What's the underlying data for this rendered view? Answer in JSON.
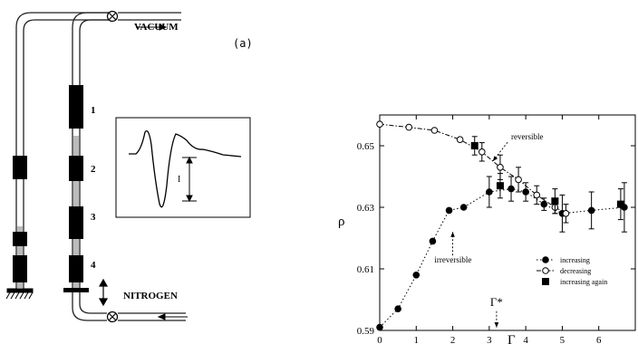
{
  "apparatus": {
    "vacuum_label": "VACUUM",
    "nitrogen_label": "NITROGEN",
    "panel_label": "(a)",
    "coil_labels": [
      "1",
      "2",
      "3",
      "4"
    ],
    "inset_signal_label": "I"
  },
  "chart_data": {
    "type": "scatter",
    "xlabel": "Γ",
    "ylabel": "ρ",
    "xlim": [
      0,
      7
    ],
    "ylim": [
      0.59,
      0.66
    ],
    "x_ticks": [
      0,
      1,
      2,
      3,
      4,
      5,
      6
    ],
    "y_ticks": [
      0.59,
      0.61,
      0.63,
      0.65
    ],
    "y_tick_labels": [
      "0.59",
      "0.61",
      "0.63",
      "0.65"
    ],
    "series": [
      {
        "name": "increasing",
        "marker": "filled-circle",
        "line": "dotted",
        "points": [
          {
            "x": 0.0,
            "y": 0.591,
            "err": 0.0
          },
          {
            "x": 0.5,
            "y": 0.597,
            "err": 0.0
          },
          {
            "x": 1.0,
            "y": 0.608,
            "err": 0.0
          },
          {
            "x": 1.45,
            "y": 0.619,
            "err": 0.0
          },
          {
            "x": 1.9,
            "y": 0.629,
            "err": 0.0
          },
          {
            "x": 2.3,
            "y": 0.63,
            "err": 0.0
          },
          {
            "x": 3.0,
            "y": 0.635,
            "err": 0.005
          },
          {
            "x": 3.6,
            "y": 0.636,
            "err": 0.004
          },
          {
            "x": 4.0,
            "y": 0.635,
            "err": 0.003
          },
          {
            "x": 4.5,
            "y": 0.631,
            "err": 0.002
          },
          {
            "x": 5.0,
            "y": 0.628,
            "err": 0.006
          },
          {
            "x": 5.8,
            "y": 0.629,
            "err": 0.006
          },
          {
            "x": 6.7,
            "y": 0.63,
            "err": 0.008
          }
        ]
      },
      {
        "name": "decreasing",
        "marker": "open-circle",
        "line": "dash-dot",
        "points": [
          {
            "x": 0.0,
            "y": 0.657,
            "err": 0.0
          },
          {
            "x": 0.8,
            "y": 0.656,
            "err": 0.0
          },
          {
            "x": 1.5,
            "y": 0.655,
            "err": 0.0
          },
          {
            "x": 2.2,
            "y": 0.652,
            "err": 0.0
          },
          {
            "x": 2.8,
            "y": 0.648,
            "err": 0.003
          },
          {
            "x": 3.3,
            "y": 0.643,
            "err": 0.004
          },
          {
            "x": 3.8,
            "y": 0.639,
            "err": 0.004
          },
          {
            "x": 4.3,
            "y": 0.634,
            "err": 0.003
          },
          {
            "x": 4.8,
            "y": 0.63,
            "err": 0.002
          },
          {
            "x": 5.1,
            "y": 0.628,
            "err": 0.003
          }
        ]
      },
      {
        "name": "increasing again",
        "marker": "filled-square",
        "line": "none",
        "points": [
          {
            "x": 2.6,
            "y": 0.65,
            "err": 0.003
          },
          {
            "x": 3.3,
            "y": 0.637,
            "err": 0.004
          },
          {
            "x": 4.8,
            "y": 0.632,
            "err": 0.004
          },
          {
            "x": 6.6,
            "y": 0.631,
            "err": 0.005
          }
        ]
      }
    ],
    "annotations": [
      {
        "text": "reversible",
        "x": 3.6,
        "y": 0.652,
        "arrow_to": {
          "x": 3.1,
          "y": 0.645
        }
      },
      {
        "text": "irreversible",
        "x": 1.5,
        "y": 0.612,
        "arrow_to": {
          "x": 2.0,
          "y": 0.622
        }
      },
      {
        "text": "Γ*",
        "x": 3.2,
        "y": 0.598,
        "arrow_to": {
          "x": 3.2,
          "y": 0.591
        }
      }
    ],
    "legend_position": "bottom-right",
    "grid": false
  }
}
